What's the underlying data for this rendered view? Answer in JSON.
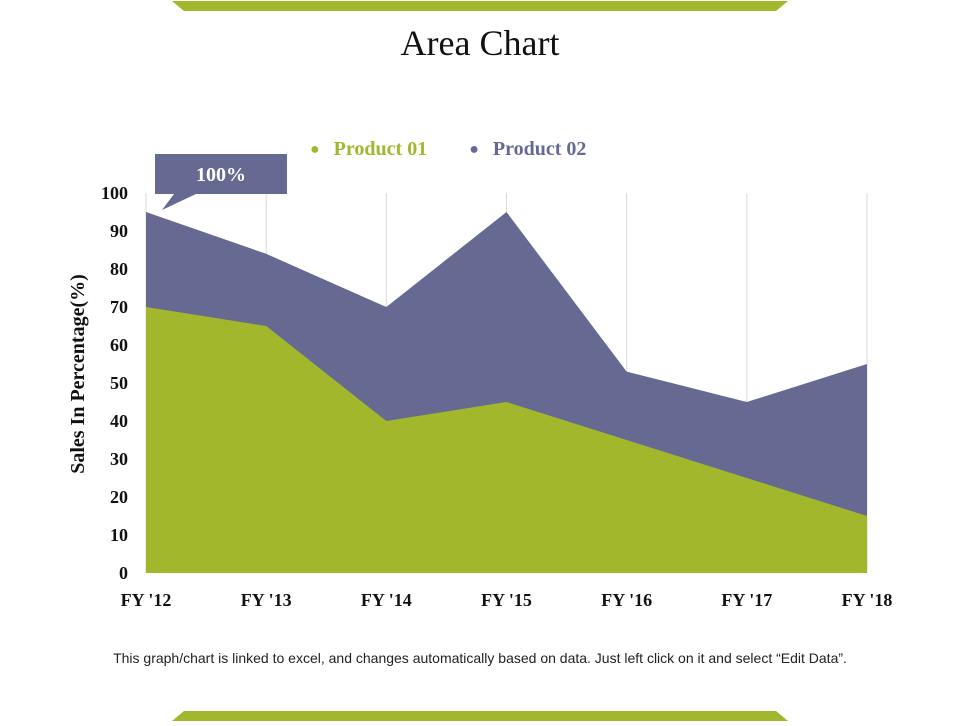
{
  "colors": {
    "accent": "#a2b72c",
    "product01": "#a2b72c",
    "product02": "#666a92",
    "grid": "#d9d9d9"
  },
  "footnote": "This graph/chart is linked to excel, and changes automatically based on data. Just left click on it and select “Edit Data”.",
  "callout": {
    "text": "100%"
  },
  "chart_data": {
    "type": "area",
    "title": "Area Chart",
    "xlabel": "",
    "ylabel": "Sales In Percentage(%)",
    "categories": [
      "FY '12",
      "FY '13",
      "FY '14",
      "FY '15",
      "FY '16",
      "FY '17",
      "FY '18"
    ],
    "ylim": [
      0,
      100
    ],
    "yticks": [
      0,
      10,
      20,
      30,
      40,
      50,
      60,
      70,
      80,
      90,
      100
    ],
    "stacked": false,
    "grid": "vertical",
    "legend": "top",
    "series": [
      {
        "name": "Product 01",
        "values": [
          70,
          65,
          40,
          45,
          35,
          25,
          15
        ]
      },
      {
        "name": "Product 02",
        "values": [
          95,
          84,
          70,
          95,
          53,
          45,
          55
        ]
      }
    ]
  }
}
